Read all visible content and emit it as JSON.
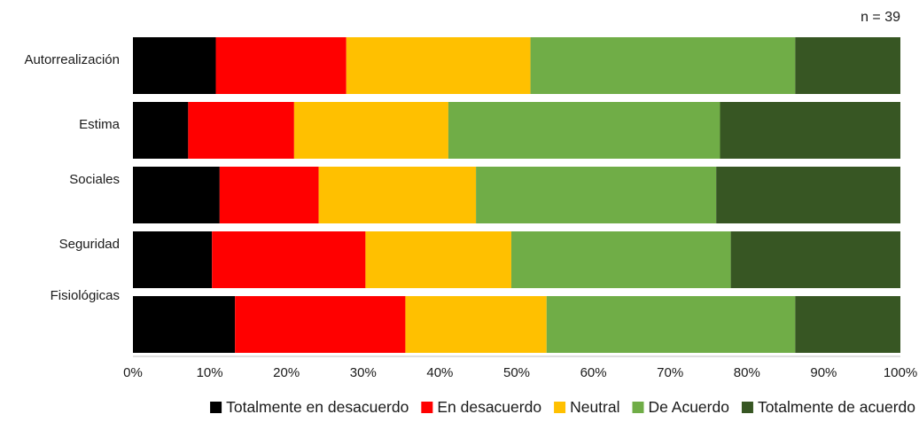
{
  "chart_data": {
    "type": "bar",
    "orientation": "horizontal",
    "stacked": true,
    "percent": true,
    "annotation": "n = 39",
    "categories": [
      "Autorrealización",
      "Estima",
      "Sociales",
      "Seguridad",
      "Fisiológicas"
    ],
    "series": [
      {
        "name": "Totalmente en desacuerdo",
        "color": "#000000",
        "values": [
          10.8,
          7.2,
          11.3,
          10.3,
          13.3
        ]
      },
      {
        "name": "En desacuerdo",
        "color": "#ff0000",
        "values": [
          17.0,
          13.8,
          12.9,
          20.0,
          22.2
        ]
      },
      {
        "name": "Neutral",
        "color": "#ffc000",
        "values": [
          24.0,
          20.1,
          20.5,
          19.0,
          18.4
        ]
      },
      {
        "name": "De Acuerdo",
        "color": "#70ad47",
        "values": [
          34.5,
          35.4,
          31.3,
          28.6,
          32.4
        ]
      },
      {
        "name": "Totalmente de acuerdo",
        "color": "#375623",
        "values": [
          13.7,
          23.5,
          24.0,
          22.1,
          13.7
        ]
      }
    ],
    "xlim": [
      0,
      100
    ],
    "x_ticks": [
      "0%",
      "10%",
      "20%",
      "30%",
      "40%",
      "50%",
      "60%",
      "70%",
      "80%",
      "90%",
      "100%"
    ],
    "legend_position": "bottom",
    "grid": false
  }
}
